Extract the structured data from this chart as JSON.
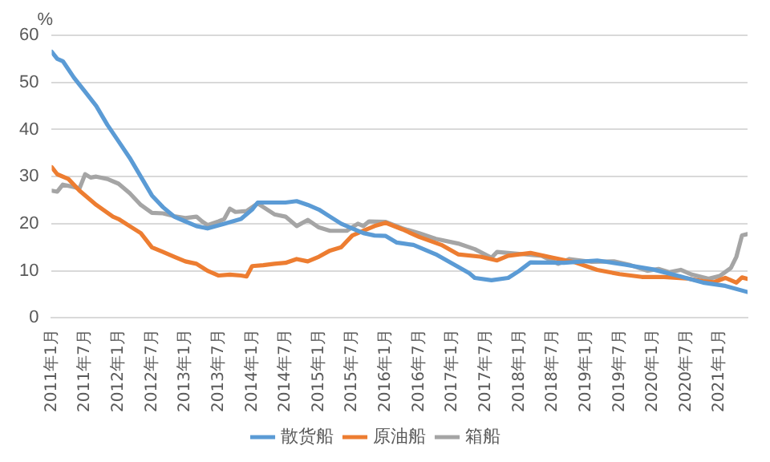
{
  "chart_data": {
    "type": "line",
    "ylabel": "%",
    "xlim": [
      "2011-01",
      "2021-06"
    ],
    "xticks": [
      {
        "value": "2011-01",
        "label": "2011年1月"
      },
      {
        "value": "2011-07",
        "label": "2011年7月"
      },
      {
        "value": "2012-01",
        "label": "2012年1月"
      },
      {
        "value": "2012-07",
        "label": "2012年7月"
      },
      {
        "value": "2013-01",
        "label": "2013年1月"
      },
      {
        "value": "2013-07",
        "label": "2013年7月"
      },
      {
        "value": "2014-01",
        "label": "2014年1月"
      },
      {
        "value": "2014-07",
        "label": "2014年7月"
      },
      {
        "value": "2015-01",
        "label": "2015年1月"
      },
      {
        "value": "2015-07",
        "label": "2015年7月"
      },
      {
        "value": "2016-01",
        "label": "2016年1月"
      },
      {
        "value": "2016-07",
        "label": "2016年7月"
      },
      {
        "value": "2017-01",
        "label": "2017年1月"
      },
      {
        "value": "2017-07",
        "label": "2017年7月"
      },
      {
        "value": "2018-01",
        "label": "2018年1月"
      },
      {
        "value": "2018-07",
        "label": "2018年7月"
      },
      {
        "value": "2019-01",
        "label": "2019年1月"
      },
      {
        "value": "2019-07",
        "label": "2019年7月"
      },
      {
        "value": "2020-01",
        "label": "2020年1月"
      },
      {
        "value": "2020-07",
        "label": "2020年7月"
      },
      {
        "value": "2021-01",
        "label": "2021年1月"
      }
    ],
    "ylim": [
      0,
      60
    ],
    "yticks": [
      0,
      10,
      20,
      30,
      40,
      50,
      60
    ],
    "grid": "y",
    "legend": "bottom",
    "marker": "none",
    "line_style": "solid",
    "series": [
      {
        "name": "散货船",
        "color": "#5b9bd5",
        "x": [
          "2011-01",
          "2011-02",
          "2011-03",
          "2011-05",
          "2011-07",
          "2011-09",
          "2011-11",
          "2012-01",
          "2012-03",
          "2012-05",
          "2012-07",
          "2012-09",
          "2012-11",
          "2013-01",
          "2013-03",
          "2013-05",
          "2013-08",
          "2013-11",
          "2014-01",
          "2014-02",
          "2014-07",
          "2014-09",
          "2014-11",
          "2015-01",
          "2015-03",
          "2015-05",
          "2015-07",
          "2015-09",
          "2015-11",
          "2016-01",
          "2016-03",
          "2016-06",
          "2016-10",
          "2017-01",
          "2017-04",
          "2017-05",
          "2017-08",
          "2017-11",
          "2018-01",
          "2018-03",
          "2018-09",
          "2019-03",
          "2019-08",
          "2020-01",
          "2020-06",
          "2020-10",
          "2021-02",
          "2021-06"
        ],
        "values": [
          56.5,
          55,
          54.5,
          51,
          48,
          45,
          41,
          37.5,
          34,
          30,
          26,
          23.5,
          21.5,
          20.5,
          19.5,
          19,
          20,
          21,
          23,
          24.5,
          24.5,
          24.8,
          24,
          23,
          21.5,
          20,
          19,
          18,
          17.5,
          17.4,
          16,
          15.5,
          13.5,
          11.5,
          9.5,
          8.5,
          8,
          8.5,
          10,
          11.8,
          11.7,
          12.2,
          11.3,
          10.3,
          8.8,
          7.5,
          6.8,
          5.5
        ]
      },
      {
        "name": "原油船",
        "color": "#ed7d31",
        "x": [
          "2011-01",
          "2011-02",
          "2011-04",
          "2011-06",
          "2011-09",
          "2011-12",
          "2012-01",
          "2012-03",
          "2012-05",
          "2012-07",
          "2012-09",
          "2012-11",
          "2013-01",
          "2013-03",
          "2013-05",
          "2013-07",
          "2013-09",
          "2013-11",
          "2013-12",
          "2014-01",
          "2014-03",
          "2014-05",
          "2014-07",
          "2014-09",
          "2014-11",
          "2015-01",
          "2015-03",
          "2015-05",
          "2015-07",
          "2015-09",
          "2015-11",
          "2016-01",
          "2016-04",
          "2016-07",
          "2016-11",
          "2017-02",
          "2017-06",
          "2017-09",
          "2017-11",
          "2018-03",
          "2018-07",
          "2018-11",
          "2019-03",
          "2019-07",
          "2019-11",
          "2020-03",
          "2020-07",
          "2020-10",
          "2020-12",
          "2021-02",
          "2021-04",
          "2021-05",
          "2021-06"
        ],
        "values": [
          32,
          30.5,
          29.5,
          27,
          24,
          21.5,
          21,
          19.5,
          18,
          15,
          14,
          13,
          12,
          11.5,
          10,
          9,
          9.2,
          9,
          8.8,
          11,
          11.2,
          11.5,
          11.7,
          12.5,
          12,
          13,
          14.3,
          15,
          17.5,
          18.5,
          19.5,
          20.2,
          18.8,
          17.2,
          15.5,
          13.5,
          13,
          12.2,
          13.2,
          13.8,
          12.8,
          11.8,
          10.2,
          9.3,
          8.7,
          8.7,
          8.4,
          7.8,
          7.6,
          8.5,
          7.5,
          8.6,
          8.3
        ]
      },
      {
        "name": "箱船",
        "color": "#a5a5a5",
        "x": [
          "2011-01",
          "2011-02",
          "2011-03",
          "2011-05",
          "2011-06",
          "2011-07",
          "2011-08",
          "2011-09",
          "2011-11",
          "2012-01",
          "2012-03",
          "2012-05",
          "2012-07",
          "2012-09",
          "2012-11",
          "2013-01",
          "2013-03",
          "2013-04",
          "2013-05",
          "2013-07",
          "2013-08",
          "2013-09",
          "2013-10",
          "2013-12",
          "2014-02",
          "2014-05",
          "2014-07",
          "2014-09",
          "2014-11",
          "2015-01",
          "2015-03",
          "2015-06",
          "2015-08",
          "2015-09",
          "2015-10",
          "2016-01",
          "2016-04",
          "2016-07",
          "2016-10",
          "2017-02",
          "2017-05",
          "2017-08",
          "2017-09",
          "2018-01",
          "2018-05",
          "2018-08",
          "2018-10",
          "2019-02",
          "2019-06",
          "2019-09",
          "2019-12",
          "2020-02",
          "2020-04",
          "2020-06",
          "2020-08",
          "2020-11",
          "2021-01",
          "2021-03",
          "2021-04",
          "2021-05",
          "2021-06"
        ],
        "values": [
          27,
          26.8,
          28.3,
          27.8,
          27.5,
          30.5,
          29.8,
          30,
          29.5,
          28.5,
          26.5,
          24,
          22.3,
          22.2,
          21.6,
          21.2,
          21.5,
          20.5,
          19.7,
          20.5,
          21,
          23.2,
          22.5,
          22.7,
          24.3,
          22,
          21.5,
          19.5,
          20.8,
          19.2,
          18.5,
          18.5,
          20,
          19.5,
          20.5,
          20.4,
          19,
          18,
          16.8,
          15.8,
          14.6,
          12.8,
          14,
          13.6,
          13.2,
          11.5,
          12.5,
          11.9,
          12,
          11.2,
          10,
          10.4,
          9.7,
          10.2,
          9.2,
          8.3,
          8.9,
          10.6,
          13,
          17.5,
          17.8
        ]
      }
    ]
  }
}
